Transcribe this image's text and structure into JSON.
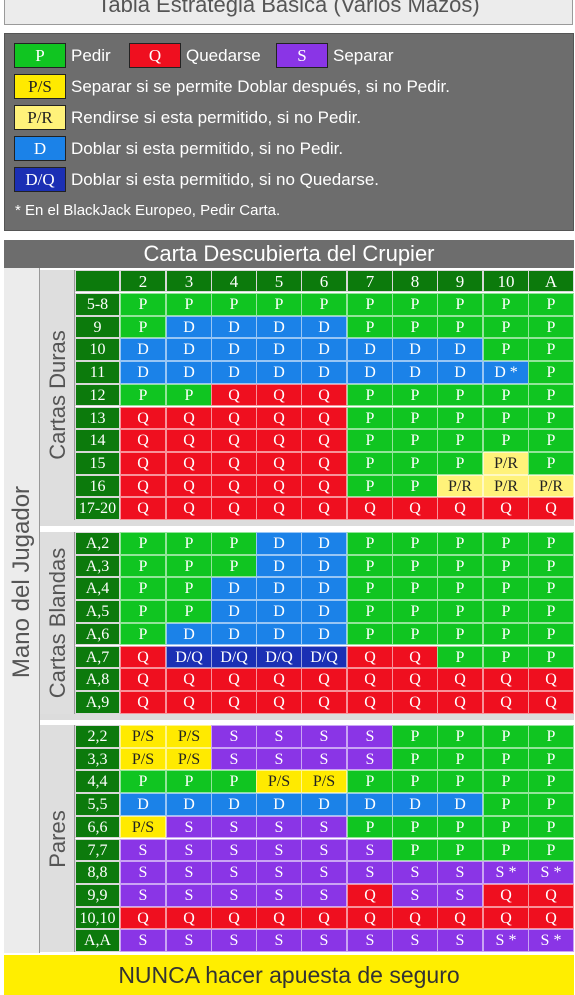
{
  "title": "Tabla Estrategia Básica (Varios Mazos)",
  "legend": {
    "row1": [
      {
        "code": "P",
        "text": "Pedir"
      },
      {
        "code": "Q",
        "text": "Quedarse"
      },
      {
        "code": "S",
        "text": "Separar"
      }
    ],
    "rows": [
      {
        "code": "P/S",
        "text": "Separar si se permite Doblar después, si no Pedir."
      },
      {
        "code": "P/R",
        "text": "Rendirse si esta permitido, si no Pedir."
      },
      {
        "code": "D",
        "text": "Doblar si esta permitido, si no Pedir."
      },
      {
        "code": "D/Q",
        "text": "Doblar si esta permitido, si no Quedarse."
      }
    ],
    "footnote": "* En el BlackJack Europeo, Pedir Carta."
  },
  "colors": {
    "P": "#10c521",
    "Q": "#ef0f1f",
    "D": "#1b82e8",
    "S": "#8a35e6",
    "P/S": "#ffea00",
    "P/R": "#fff27a",
    "D/Q": "#1b2fb4",
    "header": "#0c7a0c"
  },
  "dealer_header": "Carta Descubierta del Crupier",
  "player_label": "Mano del Jugador",
  "dealer_cards": [
    "2",
    "3",
    "4",
    "5",
    "6",
    "7",
    "8",
    "9",
    "10",
    "A"
  ],
  "sections": [
    {
      "label": "Cartas Duras",
      "rows": [
        {
          "hand": "5-8",
          "cells": [
            "P",
            "P",
            "P",
            "P",
            "P",
            "P",
            "P",
            "P",
            "P",
            "P"
          ]
        },
        {
          "hand": "9",
          "cells": [
            "P",
            "D",
            "D",
            "D",
            "D",
            "P",
            "P",
            "P",
            "P",
            "P"
          ]
        },
        {
          "hand": "10",
          "cells": [
            "D",
            "D",
            "D",
            "D",
            "D",
            "D",
            "D",
            "D",
            "P",
            "P"
          ]
        },
        {
          "hand": "11",
          "cells": [
            "D",
            "D",
            "D",
            "D",
            "D",
            "D",
            "D",
            "D",
            "D *",
            "P"
          ]
        },
        {
          "hand": "12",
          "cells": [
            "P",
            "P",
            "Q",
            "Q",
            "Q",
            "P",
            "P",
            "P",
            "P",
            "P"
          ]
        },
        {
          "hand": "13",
          "cells": [
            "Q",
            "Q",
            "Q",
            "Q",
            "Q",
            "P",
            "P",
            "P",
            "P",
            "P"
          ]
        },
        {
          "hand": "14",
          "cells": [
            "Q",
            "Q",
            "Q",
            "Q",
            "Q",
            "P",
            "P",
            "P",
            "P",
            "P"
          ]
        },
        {
          "hand": "15",
          "cells": [
            "Q",
            "Q",
            "Q",
            "Q",
            "Q",
            "P",
            "P",
            "P",
            "P/R",
            "P"
          ]
        },
        {
          "hand": "16",
          "cells": [
            "Q",
            "Q",
            "Q",
            "Q",
            "Q",
            "P",
            "P",
            "P/R",
            "P/R",
            "P/R"
          ]
        },
        {
          "hand": "17-20",
          "cells": [
            "Q",
            "Q",
            "Q",
            "Q",
            "Q",
            "Q",
            "Q",
            "Q",
            "Q",
            "Q"
          ]
        }
      ]
    },
    {
      "label": "Cartas Blandas",
      "rows": [
        {
          "hand": "A,2",
          "cells": [
            "P",
            "P",
            "P",
            "D",
            "D",
            "P",
            "P",
            "P",
            "P",
            "P"
          ]
        },
        {
          "hand": "A,3",
          "cells": [
            "P",
            "P",
            "P",
            "D",
            "D",
            "P",
            "P",
            "P",
            "P",
            "P"
          ]
        },
        {
          "hand": "A,4",
          "cells": [
            "P",
            "P",
            "D",
            "D",
            "D",
            "P",
            "P",
            "P",
            "P",
            "P"
          ]
        },
        {
          "hand": "A,5",
          "cells": [
            "P",
            "P",
            "D",
            "D",
            "D",
            "P",
            "P",
            "P",
            "P",
            "P"
          ]
        },
        {
          "hand": "A,6",
          "cells": [
            "P",
            "D",
            "D",
            "D",
            "D",
            "P",
            "P",
            "P",
            "P",
            "P"
          ]
        },
        {
          "hand": "A,7",
          "cells": [
            "Q",
            "D/Q",
            "D/Q",
            "D/Q",
            "D/Q",
            "Q",
            "Q",
            "P",
            "P",
            "P"
          ]
        },
        {
          "hand": "A,8",
          "cells": [
            "Q",
            "Q",
            "Q",
            "Q",
            "Q",
            "Q",
            "Q",
            "Q",
            "Q",
            "Q"
          ]
        },
        {
          "hand": "A,9",
          "cells": [
            "Q",
            "Q",
            "Q",
            "Q",
            "Q",
            "Q",
            "Q",
            "Q",
            "Q",
            "Q"
          ]
        }
      ]
    },
    {
      "label": "Pares",
      "rows": [
        {
          "hand": "2,2",
          "cells": [
            "P/S",
            "P/S",
            "S",
            "S",
            "S",
            "S",
            "P",
            "P",
            "P",
            "P"
          ]
        },
        {
          "hand": "3,3",
          "cells": [
            "P/S",
            "P/S",
            "S",
            "S",
            "S",
            "S",
            "P",
            "P",
            "P",
            "P"
          ]
        },
        {
          "hand": "4,4",
          "cells": [
            "P",
            "P",
            "P",
            "P/S",
            "P/S",
            "P",
            "P",
            "P",
            "P",
            "P"
          ]
        },
        {
          "hand": "5,5",
          "cells": [
            "D",
            "D",
            "D",
            "D",
            "D",
            "D",
            "D",
            "D",
            "P",
            "P"
          ]
        },
        {
          "hand": "6,6",
          "cells": [
            "P/S",
            "S",
            "S",
            "S",
            "S",
            "P",
            "P",
            "P",
            "P",
            "P"
          ]
        },
        {
          "hand": "7,7",
          "cells": [
            "S",
            "S",
            "S",
            "S",
            "S",
            "S",
            "P",
            "P",
            "P",
            "P"
          ]
        },
        {
          "hand": "8,8",
          "cells": [
            "S",
            "S",
            "S",
            "S",
            "S",
            "S",
            "S",
            "S",
            "S *",
            "S *"
          ]
        },
        {
          "hand": "9,9",
          "cells": [
            "S",
            "S",
            "S",
            "S",
            "S",
            "Q",
            "S",
            "S",
            "Q",
            "Q"
          ]
        },
        {
          "hand": "10,10",
          "cells": [
            "Q",
            "Q",
            "Q",
            "Q",
            "Q",
            "Q",
            "Q",
            "Q",
            "Q",
            "Q"
          ]
        },
        {
          "hand": "A,A",
          "cells": [
            "S",
            "S",
            "S",
            "S",
            "S",
            "S",
            "S",
            "S",
            "S *",
            "S *"
          ]
        }
      ]
    }
  ],
  "bottom_banner": "NUNCA hacer apuesta de seguro"
}
